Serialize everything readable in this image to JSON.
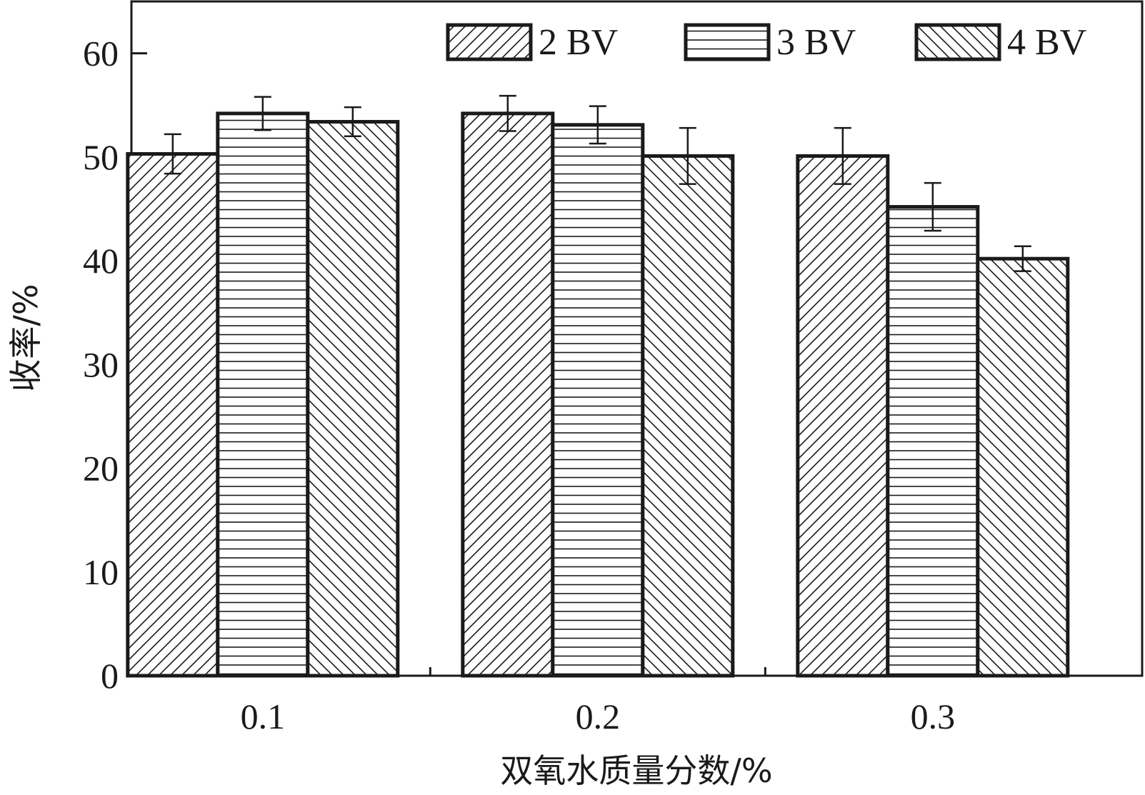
{
  "chart_data": {
    "type": "bar",
    "title": "",
    "xlabel": "双氧水质量分数/%",
    "ylabel": "收率/%",
    "categories": [
      "0.1",
      "0.2",
      "0.3"
    ],
    "ylim": [
      0,
      65
    ],
    "yticks": [
      0,
      10,
      20,
      30,
      40,
      50,
      60
    ],
    "series": [
      {
        "name": "2 BV",
        "pattern": "diag-right",
        "values": [
          50.3,
          54.2,
          50.1
        ],
        "errors": [
          1.9,
          1.7,
          2.7
        ]
      },
      {
        "name": "3 BV",
        "pattern": "horizontal",
        "values": [
          54.2,
          53.1,
          45.2
        ],
        "errors": [
          1.6,
          1.8,
          2.3
        ]
      },
      {
        "name": "4 BV",
        "pattern": "diag-left",
        "values": [
          53.4,
          50.1,
          40.2
        ],
        "errors": [
          1.4,
          2.7,
          1.2
        ]
      }
    ],
    "legend_position": "top-right",
    "grid": false,
    "colors": {
      "ink": "#1a1a1a",
      "fill": "#ffffff"
    }
  }
}
